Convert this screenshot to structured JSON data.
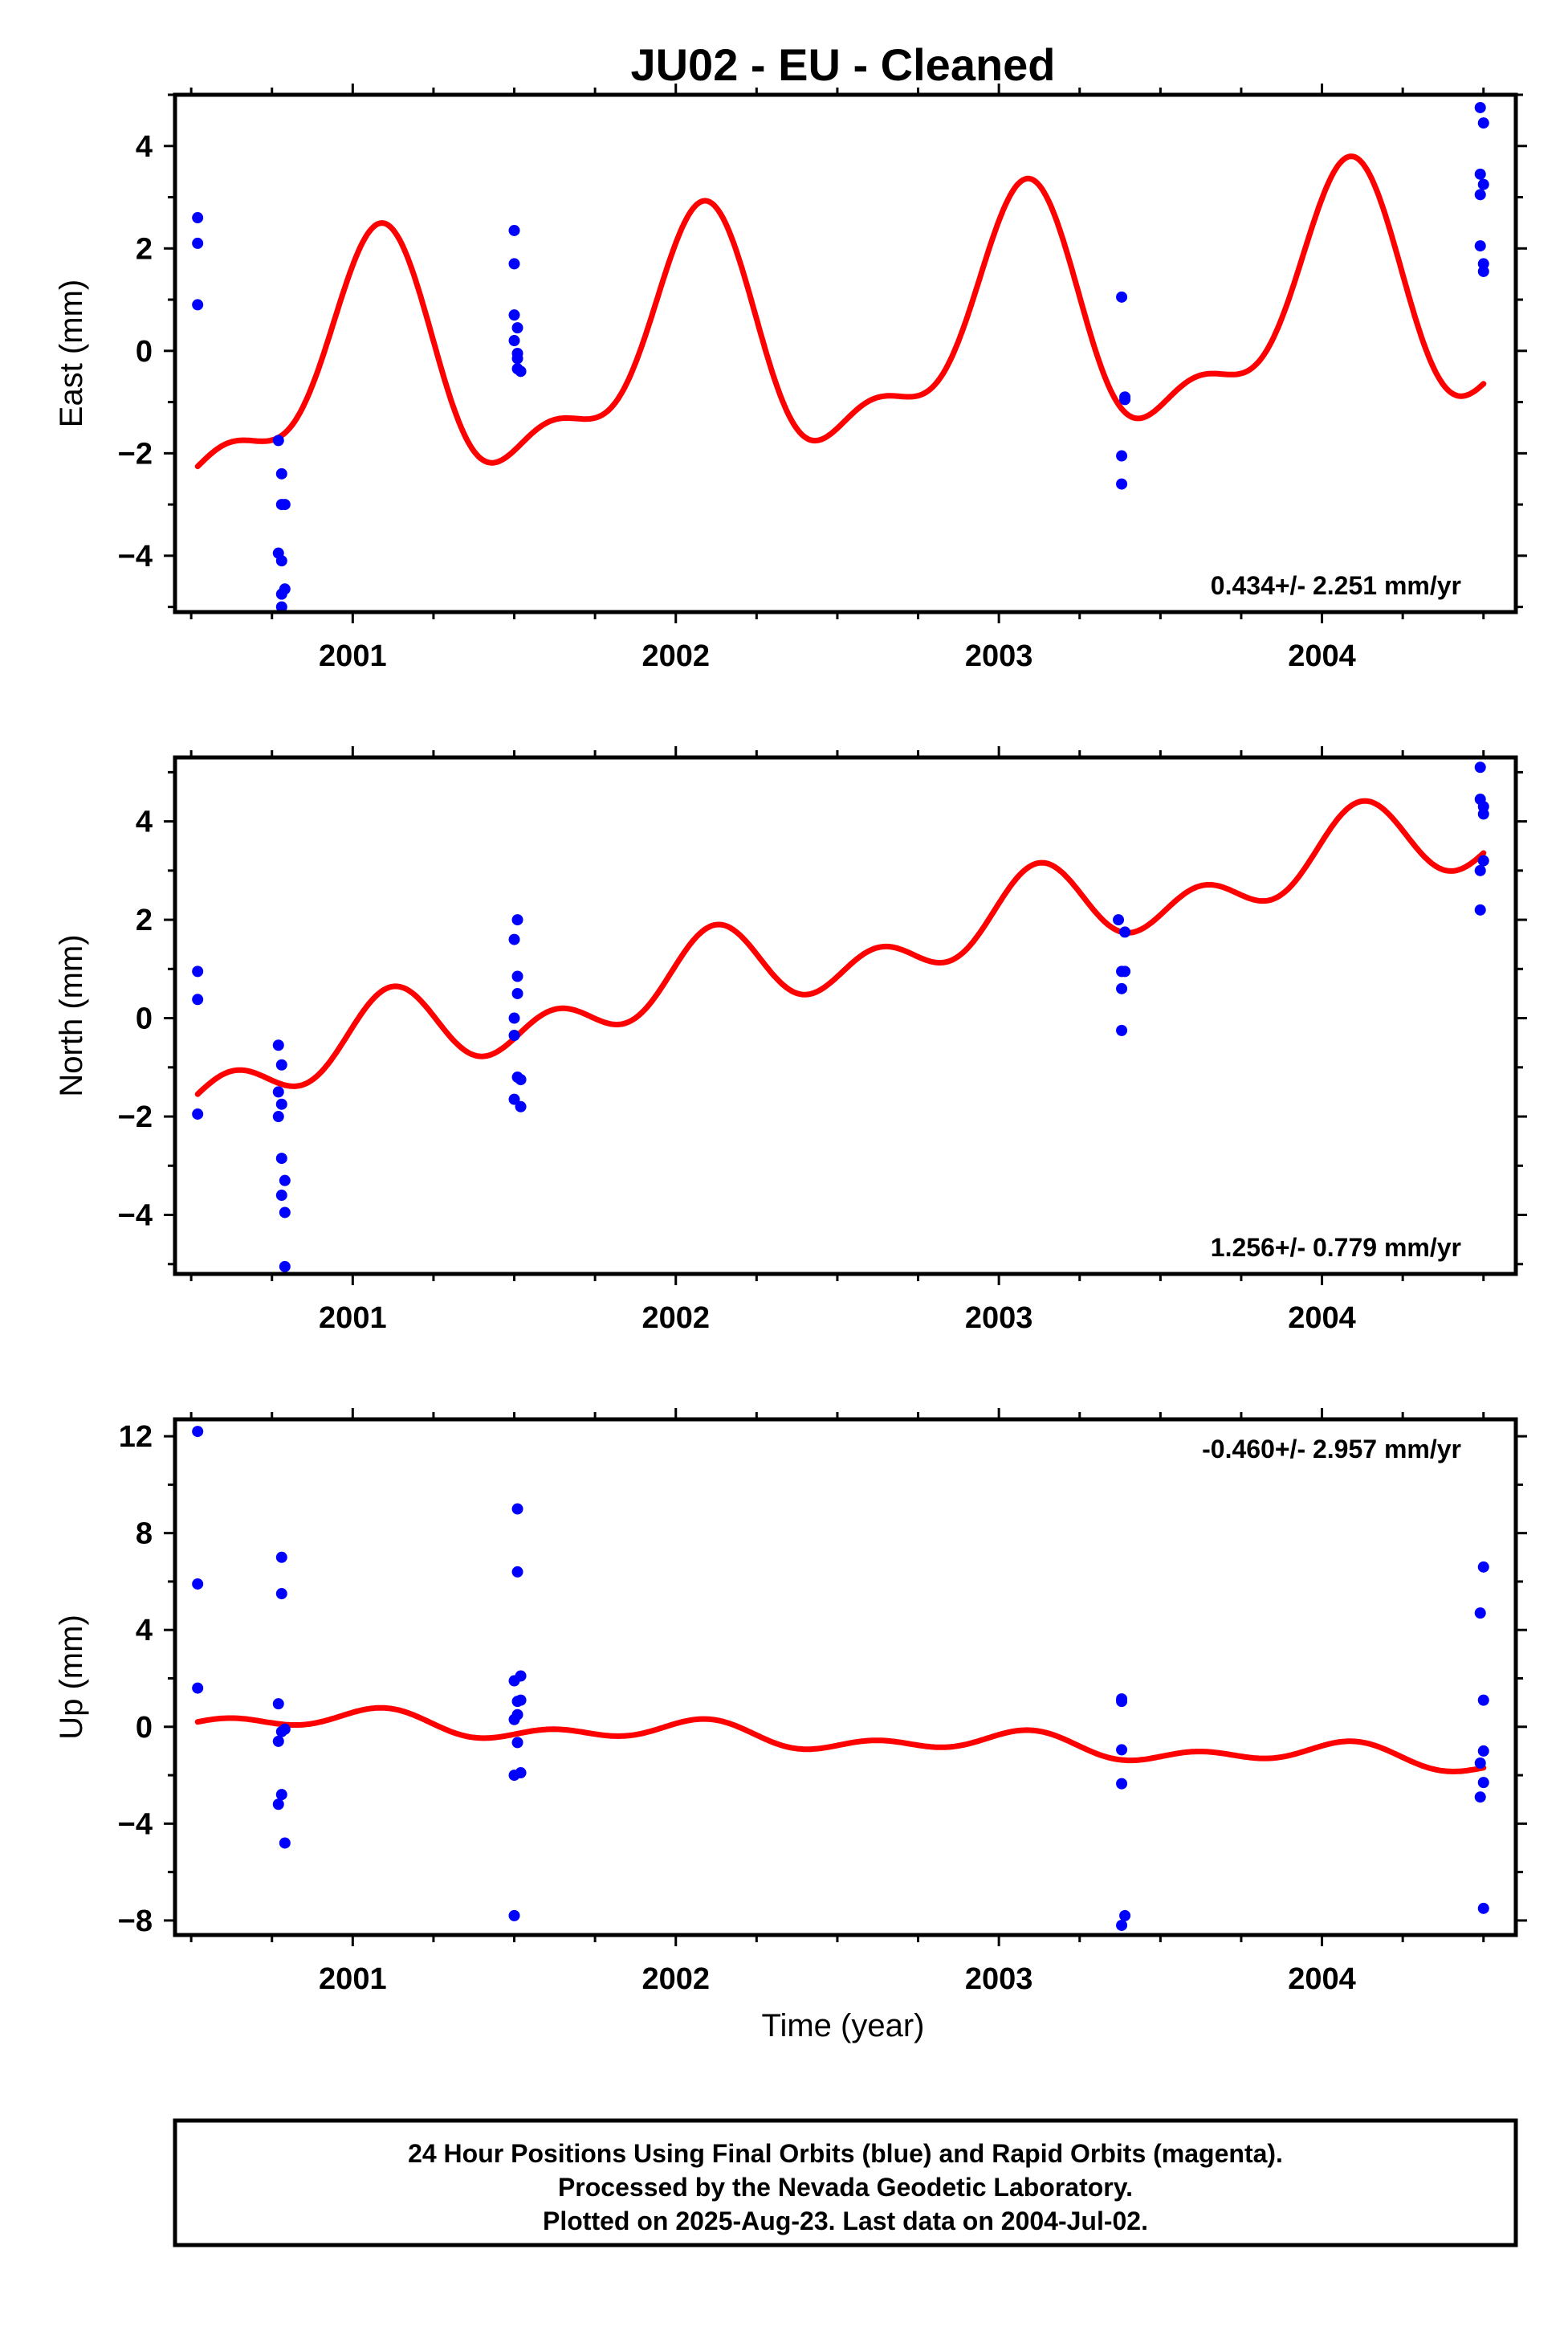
{
  "chart_data": {
    "title": "JU02  - EU - Cleaned",
    "xlabel": "Time (year)",
    "x_ticks": [
      2001,
      2002,
      2003,
      2004
    ],
    "xlim": [
      2000.45,
      2004.6
    ],
    "colors": {
      "final_orbits": "#0000ff",
      "model_fit": "#ff0000",
      "frame": "#000000"
    },
    "footer": [
      "24 Hour Positions Using Final Orbits (blue) and Rapid Orbits (magenta).",
      "Processed by the Nevada Geodetic Laboratory.",
      "Plotted on 2025-Aug-23. Last data on 2004-Jul-02."
    ],
    "panels": [
      {
        "type": "scatter",
        "ylabel": "East (mm)",
        "ylim": [
          -5.1,
          5.0
        ],
        "y_ticks": [
          -4,
          -2,
          0,
          2,
          4
        ],
        "rate": "0.434+/- 2.251 mm/yr",
        "rate_position": "bottom-right",
        "points": [
          [
            2000.52,
            2.6
          ],
          [
            2000.52,
            2.1
          ],
          [
            2000.52,
            0.9
          ],
          [
            2000.77,
            -1.75
          ],
          [
            2000.78,
            -2.4
          ],
          [
            2000.78,
            -3.0
          ],
          [
            2000.79,
            -3.0
          ],
          [
            2000.77,
            -3.95
          ],
          [
            2000.78,
            -4.1
          ],
          [
            2000.79,
            -4.65
          ],
          [
            2000.78,
            -4.75
          ],
          [
            2000.78,
            -5.0
          ],
          [
            2001.5,
            2.35
          ],
          [
            2001.5,
            1.7
          ],
          [
            2001.5,
            0.7
          ],
          [
            2001.51,
            0.45
          ],
          [
            2001.5,
            0.2
          ],
          [
            2001.51,
            -0.05
          ],
          [
            2001.51,
            -0.15
          ],
          [
            2001.51,
            -0.35
          ],
          [
            2001.52,
            -0.4
          ],
          [
            2003.38,
            1.05
          ],
          [
            2003.39,
            -0.9
          ],
          [
            2003.39,
            -0.95
          ],
          [
            2003.38,
            -2.05
          ],
          [
            2003.38,
            -2.6
          ],
          [
            2004.49,
            4.75
          ],
          [
            2004.5,
            4.45
          ],
          [
            2004.49,
            3.45
          ],
          [
            2004.5,
            3.25
          ],
          [
            2004.49,
            3.05
          ],
          [
            2004.49,
            2.05
          ],
          [
            2004.5,
            1.7
          ],
          [
            2004.5,
            1.55
          ]
        ],
        "model": {
          "offset": -0.75,
          "rate": 0.434,
          "a1": 2.1,
          "p1": 1.15,
          "a2": 0.9,
          "p2": 0.3
        }
      },
      {
        "type": "scatter",
        "ylabel": "North (mm)",
        "ylim": [
          -5.2,
          5.3
        ],
        "y_ticks": [
          -4,
          -2,
          0,
          2,
          4
        ],
        "rate": "1.256+/- 0.779 mm/yr",
        "rate_position": "bottom-right",
        "points": [
          [
            2000.52,
            0.95
          ],
          [
            2000.52,
            0.38
          ],
          [
            2000.52,
            -1.95
          ],
          [
            2000.77,
            -0.55
          ],
          [
            2000.78,
            -0.95
          ],
          [
            2000.77,
            -1.5
          ],
          [
            2000.78,
            -1.75
          ],
          [
            2000.77,
            -2.0
          ],
          [
            2000.78,
            -2.85
          ],
          [
            2000.79,
            -3.3
          ],
          [
            2000.78,
            -3.6
          ],
          [
            2000.79,
            -3.95
          ],
          [
            2000.79,
            -5.05
          ],
          [
            2001.51,
            2.0
          ],
          [
            2001.5,
            1.6
          ],
          [
            2001.51,
            0.85
          ],
          [
            2001.51,
            0.5
          ],
          [
            2001.5,
            0.0
          ],
          [
            2001.5,
            -0.35
          ],
          [
            2001.51,
            -1.2
          ],
          [
            2001.52,
            -1.25
          ],
          [
            2001.5,
            -1.65
          ],
          [
            2001.52,
            -1.8
          ],
          [
            2003.37,
            2.0
          ],
          [
            2003.39,
            1.75
          ],
          [
            2003.38,
            0.95
          ],
          [
            2003.39,
            0.95
          ],
          [
            2003.38,
            0.6
          ],
          [
            2003.38,
            -0.25
          ],
          [
            2004.49,
            5.1
          ],
          [
            2004.49,
            4.45
          ],
          [
            2004.5,
            4.3
          ],
          [
            2004.5,
            4.15
          ],
          [
            2004.5,
            3.2
          ],
          [
            2004.49,
            3.0
          ],
          [
            2004.49,
            2.2
          ]
        ],
        "model": {
          "offset": -1.3,
          "rate": 1.256,
          "a1": 0.55,
          "p1": 0.9,
          "a2": 0.55,
          "p2": 0.0
        }
      },
      {
        "type": "scatter",
        "ylabel": "Up (mm)",
        "ylim": [
          -8.6,
          12.7
        ],
        "y_ticks": [
          -8,
          -4,
          0,
          4,
          8,
          12
        ],
        "rate": "-0.460+/- 2.957 mm/yr",
        "rate_position": "top-right",
        "points": [
          [
            2000.52,
            12.2
          ],
          [
            2000.52,
            5.9
          ],
          [
            2000.52,
            1.6
          ],
          [
            2000.78,
            7.0
          ],
          [
            2000.78,
            5.5
          ],
          [
            2000.77,
            0.95
          ],
          [
            2000.79,
            -0.1
          ],
          [
            2000.78,
            -0.2
          ],
          [
            2000.77,
            -0.6
          ],
          [
            2000.78,
            -2.8
          ],
          [
            2000.77,
            -3.2
          ],
          [
            2000.79,
            -4.8
          ],
          [
            2001.51,
            9.0
          ],
          [
            2001.51,
            6.4
          ],
          [
            2001.52,
            2.1
          ],
          [
            2001.5,
            1.9
          ],
          [
            2001.52,
            1.1
          ],
          [
            2001.51,
            1.05
          ],
          [
            2001.51,
            0.5
          ],
          [
            2001.5,
            0.3
          ],
          [
            2001.51,
            -0.65
          ],
          [
            2001.52,
            -1.9
          ],
          [
            2001.5,
            -2.0
          ],
          [
            2001.5,
            -7.8
          ],
          [
            2003.38,
            1.15
          ],
          [
            2003.38,
            1.05
          ],
          [
            2003.38,
            -0.95
          ],
          [
            2003.38,
            -2.35
          ],
          [
            2003.39,
            -7.8
          ],
          [
            2003.38,
            -8.2
          ],
          [
            2004.5,
            6.6
          ],
          [
            2004.49,
            4.7
          ],
          [
            2004.5,
            1.1
          ],
          [
            2004.5,
            -1.0
          ],
          [
            2004.49,
            -1.5
          ],
          [
            2004.5,
            -2.3
          ],
          [
            2004.49,
            -2.9
          ],
          [
            2004.5,
            -7.5
          ]
        ],
        "model": {
          "offset": 0.45,
          "rate": -0.46,
          "a1": 0.35,
          "p1": 1.3,
          "a2": 0.3,
          "p2": 0.2
        }
      }
    ]
  }
}
